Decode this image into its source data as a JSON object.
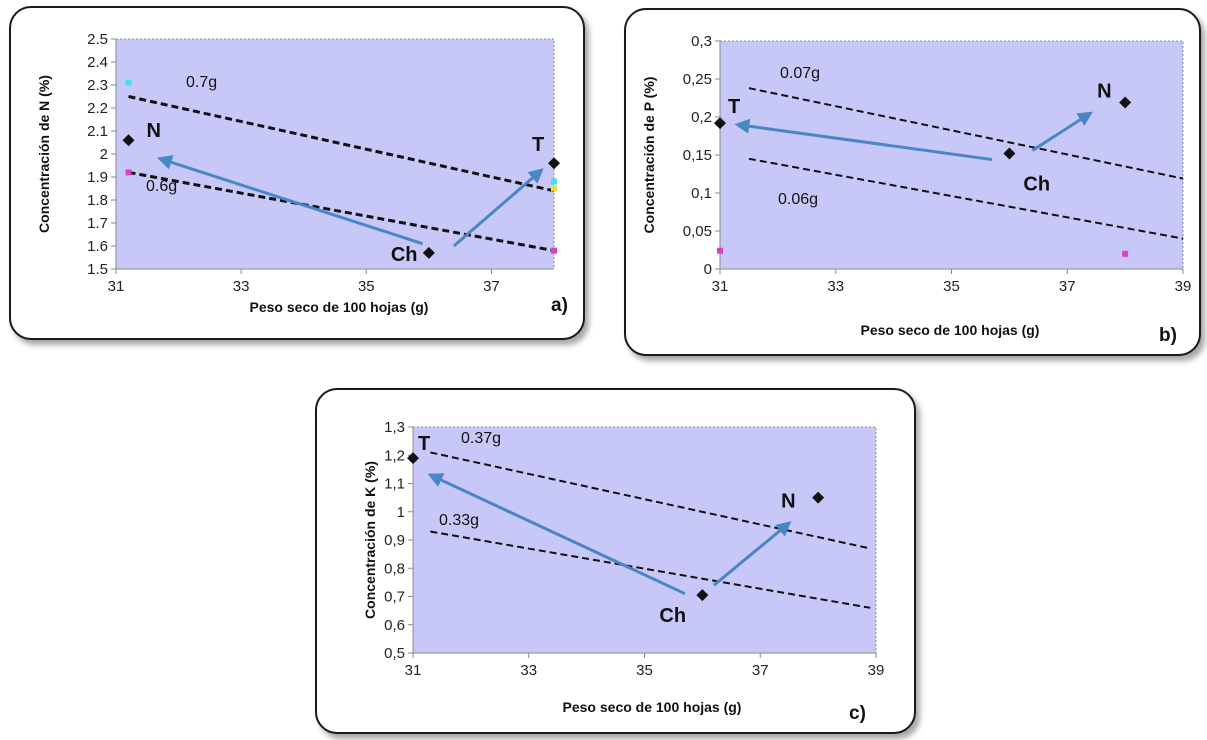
{
  "colors": {
    "plot_background": "#c8c8f8",
    "arrow": "#4a86c5",
    "marker": "#111111",
    "dashed_line": "#111111",
    "cyan_marker": "#40e0f0",
    "magenta_marker": "#e040c0",
    "yellow_marker": "#e8e040"
  },
  "chart_data": [
    {
      "type": "scatter",
      "panel_label": "a)",
      "xlabel": "Peso seco de 100 hojas (g)",
      "ylabel": "Concentración de N (%)",
      "xlim": [
        31,
        38
      ],
      "ylim": [
        1.5,
        2.5
      ],
      "xticks": [
        "31",
        "33",
        "35",
        "37"
      ],
      "xtick_values": [
        31,
        33,
        35,
        37
      ],
      "yticks": [
        "1.5",
        "1.6",
        "1.7",
        "1.8",
        "1.9",
        "2",
        "2.1",
        "2.2",
        "2.3",
        "2.4",
        "2.5"
      ],
      "ytick_values": [
        1.5,
        1.6,
        1.7,
        1.8,
        1.9,
        2.0,
        2.1,
        2.2,
        2.3,
        2.4,
        2.5
      ],
      "grid": false,
      "points": [
        {
          "label": "N",
          "x": 31.2,
          "y": 2.06
        },
        {
          "label": "Ch",
          "x": 36.0,
          "y": 1.57
        },
        {
          "label": "T",
          "x": 38.0,
          "y": 1.96
        }
      ],
      "minor_points": [
        {
          "x": 31.2,
          "y": 2.31,
          "color": "cyan"
        },
        {
          "x": 31.2,
          "y": 1.92,
          "color": "magenta"
        },
        {
          "x": 38.0,
          "y": 1.88,
          "color": "cyan"
        },
        {
          "x": 38.0,
          "y": 1.85,
          "color": "yellow"
        },
        {
          "x": 38.0,
          "y": 1.58,
          "color": "magenta"
        }
      ],
      "dashed_lines": [
        {
          "label": "0.7g",
          "x": [
            31.2,
            38.0
          ],
          "y": [
            2.25,
            1.84
          ]
        },
        {
          "label": "0.6g",
          "x": [
            31.2,
            38.0
          ],
          "y": [
            1.92,
            1.58
          ]
        }
      ],
      "arrows": [
        {
          "from": [
            35.9,
            1.61
          ],
          "to": [
            31.7,
            1.98
          ]
        },
        {
          "from": [
            36.4,
            1.6
          ],
          "to": [
            37.8,
            1.93
          ]
        }
      ]
    },
    {
      "type": "scatter",
      "panel_label": "b)",
      "xlabel": "Peso seco de 100 hojas (g)",
      "ylabel": "Concentración de P (%)",
      "xlim": [
        31,
        39
      ],
      "ylim": [
        0,
        0.3
      ],
      "xticks": [
        "31",
        "33",
        "35",
        "37",
        "39"
      ],
      "xtick_values": [
        31,
        33,
        35,
        37,
        39
      ],
      "yticks": [
        "0",
        "0,05",
        "0,1",
        "0,15",
        "0,2",
        "0,25",
        "0,3"
      ],
      "ytick_values": [
        0,
        0.05,
        0.1,
        0.15,
        0.2,
        0.25,
        0.3
      ],
      "grid": false,
      "points": [
        {
          "label": "T",
          "x": 31.0,
          "y": 0.192
        },
        {
          "label": "Ch",
          "x": 36.0,
          "y": 0.152
        },
        {
          "label": "N",
          "x": 38.0,
          "y": 0.219
        }
      ],
      "minor_points": [
        {
          "x": 31.0,
          "y": 0.024,
          "color": "magenta"
        },
        {
          "x": 38.0,
          "y": 0.02,
          "color": "magenta"
        }
      ],
      "dashed_lines": [
        {
          "label": "0.07g",
          "x": [
            31.5,
            39.0
          ],
          "y": [
            0.238,
            0.119
          ]
        },
        {
          "label": "0.06g",
          "x": [
            31.5,
            39.0
          ],
          "y": [
            0.145,
            0.04
          ]
        }
      ],
      "arrows": [
        {
          "from": [
            35.7,
            0.144
          ],
          "to": [
            31.3,
            0.19
          ]
        },
        {
          "from": [
            36.4,
            0.156
          ],
          "to": [
            37.4,
            0.205
          ]
        }
      ]
    },
    {
      "type": "scatter",
      "panel_label": "c)",
      "xlabel": "Peso seco de 100 hojas (g)",
      "ylabel": "Concentración de K (%)",
      "xlim": [
        31,
        39
      ],
      "ylim": [
        0.5,
        1.3
      ],
      "xticks": [
        "31",
        "33",
        "35",
        "37",
        "39"
      ],
      "xtick_values": [
        31,
        33,
        35,
        37,
        39
      ],
      "yticks": [
        "0,5",
        "0,6",
        "0,7",
        "0,8",
        "0,9",
        "1",
        "1,1",
        "1,2",
        "1,3"
      ],
      "ytick_values": [
        0.5,
        0.6,
        0.7,
        0.8,
        0.9,
        1.0,
        1.1,
        1.2,
        1.3
      ],
      "grid": false,
      "points": [
        {
          "label": "T",
          "x": 31.0,
          "y": 1.19
        },
        {
          "label": "Ch",
          "x": 36.0,
          "y": 0.705
        },
        {
          "label": "N",
          "x": 38.0,
          "y": 1.05
        }
      ],
      "minor_points": [],
      "dashed_lines": [
        {
          "label": "0.37g",
          "x": [
            31.3,
            38.9
          ],
          "y": [
            1.21,
            0.87
          ]
        },
        {
          "label": "0.33g",
          "x": [
            31.3,
            38.9
          ],
          "y": [
            0.93,
            0.66
          ]
        }
      ],
      "arrows": [
        {
          "from": [
            35.7,
            0.71
          ],
          "to": [
            31.3,
            1.13
          ]
        },
        {
          "from": [
            36.2,
            0.74
          ],
          "to": [
            37.5,
            0.96
          ]
        }
      ]
    }
  ]
}
